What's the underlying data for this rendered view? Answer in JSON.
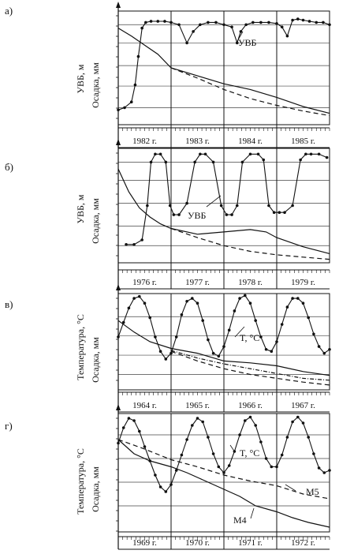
{
  "chart_data": [
    {
      "type": "line",
      "panel_label": "а)",
      "ylabel_top": "УВБ, м",
      "ylabel_bottom": "Осадка, мм",
      "x_ticks": [
        "1982 г.",
        "1983 г.",
        "1984 г.",
        "1985 г."
      ],
      "xlim": [
        0,
        4
      ],
      "annotations": [
        "УВБ"
      ],
      "series": [
        {
          "name": "УВБ",
          "role": "marker",
          "x": [
            0.0,
            0.12,
            0.25,
            0.32,
            0.38,
            0.45,
            0.52,
            0.62,
            0.75,
            0.88,
            1.0,
            1.15,
            1.3,
            1.42,
            1.55,
            1.7,
            1.85,
            2.0,
            2.15,
            2.25,
            2.32,
            2.42,
            2.55,
            2.7,
            2.85,
            3.0,
            3.1,
            3.2,
            3.3,
            3.4,
            3.5,
            3.62,
            3.75,
            3.88,
            4.0
          ],
          "y": [
            0.13,
            0.15,
            0.2,
            0.35,
            0.6,
            0.85,
            0.9,
            0.91,
            0.91,
            0.91,
            0.9,
            0.88,
            0.72,
            0.82,
            0.88,
            0.9,
            0.9,
            0.88,
            0.86,
            0.72,
            0.82,
            0.88,
            0.9,
            0.9,
            0.9,
            0.89,
            0.86,
            0.78,
            0.92,
            0.93,
            0.92,
            0.91,
            0.9,
            0.9,
            0.88
          ]
        },
        {
          "name": "Осадка",
          "role": "solid",
          "x": [
            0.0,
            0.25,
            0.5,
            0.75,
            1.0,
            1.5,
            2.0,
            2.5,
            3.0,
            3.5,
            4.0
          ],
          "y": [
            0.85,
            0.78,
            0.7,
            0.62,
            0.5,
            0.43,
            0.36,
            0.31,
            0.24,
            0.16,
            0.1
          ]
        },
        {
          "name": "",
          "role": "dashed",
          "x": [
            1.0,
            1.5,
            2.0,
            2.5,
            3.0,
            3.5,
            4.0
          ],
          "y": [
            0.5,
            0.41,
            0.31,
            0.23,
            0.17,
            0.12,
            0.08
          ]
        }
      ]
    },
    {
      "type": "line",
      "panel_label": "б)",
      "ylabel_top": "УВБ, м",
      "ylabel_bottom": "Осадка, мм",
      "x_ticks": [
        "1976 г.",
        "1977 г.",
        "1978 г.",
        "1979 г."
      ],
      "xlim": [
        0,
        4
      ],
      "annotations": [
        "УВБ"
      ],
      "series": [
        {
          "name": "УВБ",
          "role": "marker",
          "x": [
            0.15,
            0.3,
            0.45,
            0.55,
            0.62,
            0.7,
            0.8,
            0.9,
            0.98,
            1.05,
            1.15,
            1.3,
            1.45,
            1.55,
            1.65,
            1.8,
            1.95,
            2.05,
            2.15,
            2.25,
            2.35,
            2.5,
            2.65,
            2.75,
            2.85,
            2.95,
            3.05,
            3.15,
            3.3,
            3.45,
            3.55,
            3.65,
            3.8,
            3.95
          ],
          "y": [
            0.16,
            0.16,
            0.2,
            0.5,
            0.88,
            0.95,
            0.95,
            0.88,
            0.5,
            0.42,
            0.42,
            0.52,
            0.88,
            0.95,
            0.95,
            0.88,
            0.5,
            0.42,
            0.42,
            0.5,
            0.88,
            0.95,
            0.95,
            0.9,
            0.5,
            0.44,
            0.44,
            0.44,
            0.5,
            0.9,
            0.95,
            0.95,
            0.95,
            0.92
          ]
        },
        {
          "name": "Осадка",
          "role": "solid",
          "x": [
            0.0,
            0.2,
            0.4,
            0.6,
            0.8,
            1.0,
            1.5,
            2.0,
            2.5,
            2.8,
            3.0,
            3.5,
            4.0
          ],
          "y": [
            0.82,
            0.62,
            0.48,
            0.4,
            0.34,
            0.3,
            0.25,
            0.27,
            0.29,
            0.27,
            0.22,
            0.14,
            0.08
          ]
        },
        {
          "name": "",
          "role": "dashed",
          "x": [
            1.0,
            1.5,
            2.0,
            2.5,
            3.0,
            3.5,
            4.0
          ],
          "y": [
            0.3,
            0.22,
            0.15,
            0.1,
            0.07,
            0.05,
            0.03
          ]
        }
      ]
    },
    {
      "type": "line",
      "panel_label": "в)",
      "ylabel_top": "Температура, °С",
      "ylabel_bottom": "Осадка, мм",
      "x_ticks": [
        "1964 г.",
        "1965 г.",
        "1966 г.",
        "1967 г."
      ],
      "xlim": [
        0,
        4
      ],
      "annotations": [
        "T, °С"
      ],
      "series": [
        {
          "name": "T, °С",
          "role": "marker",
          "x": [
            0.0,
            0.1,
            0.2,
            0.3,
            0.4,
            0.5,
            0.6,
            0.7,
            0.8,
            0.9,
            1.0,
            1.1,
            1.2,
            1.3,
            1.4,
            1.5,
            1.6,
            1.7,
            1.8,
            1.9,
            2.0,
            2.1,
            2.2,
            2.3,
            2.4,
            2.5,
            2.6,
            2.7,
            2.8,
            2.9,
            3.0,
            3.1,
            3.2,
            3.3,
            3.4,
            3.5,
            3.6,
            3.7,
            3.8,
            3.9,
            4.0
          ],
          "y": [
            0.55,
            0.7,
            0.85,
            0.95,
            0.97,
            0.9,
            0.75,
            0.55,
            0.4,
            0.32,
            0.38,
            0.55,
            0.78,
            0.92,
            0.95,
            0.9,
            0.72,
            0.52,
            0.38,
            0.35,
            0.45,
            0.62,
            0.82,
            0.95,
            0.98,
            0.9,
            0.72,
            0.55,
            0.42,
            0.4,
            0.5,
            0.68,
            0.86,
            0.95,
            0.95,
            0.9,
            0.75,
            0.58,
            0.45,
            0.38,
            0.42
          ]
        },
        {
          "name": "",
          "role": "solid",
          "x": [
            0.0,
            0.3,
            0.6,
            1.0,
            1.5,
            2.0,
            2.5,
            3.0,
            3.5,
            4.0
          ],
          "y": [
            0.72,
            0.6,
            0.5,
            0.43,
            0.38,
            0.3,
            0.28,
            0.25,
            0.19,
            0.15
          ]
        },
        {
          "name": "",
          "role": "dashdot",
          "x": [
            1.0,
            1.5,
            2.0,
            2.5,
            3.0,
            3.5,
            4.0
          ],
          "y": [
            0.41,
            0.33,
            0.27,
            0.22,
            0.17,
            0.12,
            0.1
          ]
        },
        {
          "name": "",
          "role": "dashed",
          "x": [
            1.0,
            1.5,
            2.0,
            2.5,
            3.0,
            3.5,
            4.0
          ],
          "y": [
            0.4,
            0.3,
            0.22,
            0.16,
            0.12,
            0.08,
            0.05
          ]
        }
      ]
    },
    {
      "type": "line",
      "panel_label": "г)",
      "ylabel_top": "Температура, °С",
      "ylabel_bottom": "Осадка, мм",
      "x_ticks": [
        "1969 г.",
        "1970 г.",
        "1971 г.",
        "1972 г."
      ],
      "xlim": [
        0,
        4
      ],
      "annotations": [
        "T, °С",
        "М5",
        "М4"
      ],
      "series": [
        {
          "name": "T, °С",
          "role": "marker",
          "x": [
            0.0,
            0.1,
            0.2,
            0.3,
            0.4,
            0.5,
            0.6,
            0.7,
            0.8,
            0.9,
            1.0,
            1.1,
            1.2,
            1.3,
            1.4,
            1.5,
            1.6,
            1.7,
            1.8,
            1.9,
            2.0,
            2.1,
            2.2,
            2.3,
            2.4,
            2.5,
            2.6,
            2.7,
            2.8,
            2.9,
            3.0,
            3.1,
            3.2,
            3.3,
            3.4,
            3.5,
            3.6,
            3.7,
            3.8,
            3.9,
            4.0
          ],
          "y": [
            0.75,
            0.88,
            0.96,
            0.94,
            0.85,
            0.72,
            0.6,
            0.48,
            0.38,
            0.34,
            0.4,
            0.52,
            0.65,
            0.78,
            0.9,
            0.96,
            0.93,
            0.8,
            0.66,
            0.55,
            0.5,
            0.56,
            0.68,
            0.82,
            0.94,
            0.97,
            0.9,
            0.76,
            0.62,
            0.55,
            0.55,
            0.65,
            0.8,
            0.93,
            0.97,
            0.92,
            0.8,
            0.66,
            0.54,
            0.5,
            0.52
          ]
        },
        {
          "name": "М5",
          "role": "dashed",
          "x": [
            0.0,
            0.5,
            1.0,
            1.5,
            2.0,
            2.5,
            3.0,
            3.5,
            4.0
          ],
          "y": [
            0.78,
            0.7,
            0.61,
            0.55,
            0.48,
            0.43,
            0.39,
            0.32,
            0.28
          ]
        },
        {
          "name": "М4",
          "role": "solid",
          "x": [
            0.0,
            0.3,
            0.6,
            1.0,
            1.3,
            1.6,
            2.0,
            2.3,
            2.6,
            3.0,
            3.3,
            3.6,
            4.0
          ],
          "y": [
            0.78,
            0.66,
            0.6,
            0.55,
            0.5,
            0.44,
            0.36,
            0.3,
            0.22,
            0.17,
            0.12,
            0.08,
            0.04
          ]
        }
      ]
    }
  ]
}
